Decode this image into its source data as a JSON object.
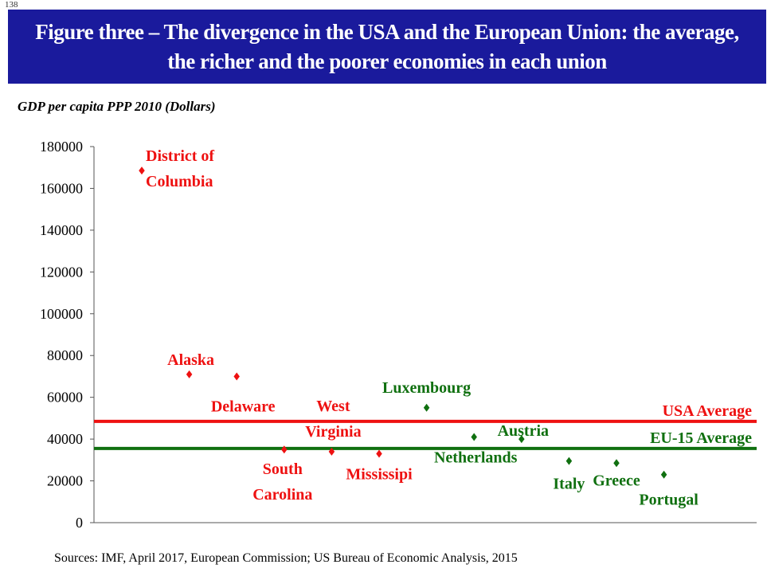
{
  "slide_number": "138",
  "title_line1": "Figure three – The divergence in the USA and the European Union: the average,",
  "title_line2": "the richer and the poorer economies in each union",
  "source": "Sources: IMF, April 2017, European Commission;  US Bureau of Economic Analysis, 2015",
  "colors": {
    "usa": "#ee1111",
    "eu": "#107010",
    "title_bg": "#1a1a9c"
  },
  "chart_data": {
    "type": "scatter",
    "ylabel": "GDP per capita PPP 2010 (Dollars)",
    "ylim": [
      0,
      180000
    ],
    "yticks": [
      "0",
      "20000",
      "40000",
      "60000",
      "80000",
      "100000",
      "120000",
      "140000",
      "160000",
      "180000"
    ],
    "grid": false,
    "series": [
      {
        "group": "usa",
        "points": [
          {
            "index": 1,
            "label": "District of Columbia",
            "value": 168500
          },
          {
            "index": 2,
            "label": "Alaska",
            "value": 71000
          },
          {
            "index": 3,
            "label": "Delaware",
            "value": 70000
          },
          {
            "index": 4,
            "label": "South Carolina",
            "value": 35000
          },
          {
            "index": 5,
            "label": "West Virginia",
            "value": 34000
          },
          {
            "index": 6,
            "label": "Mississipi",
            "value": 33000
          }
        ]
      },
      {
        "group": "eu",
        "points": [
          {
            "index": 7,
            "label": "Luxembourg",
            "value": 55000
          },
          {
            "index": 8,
            "label": "Netherlands",
            "value": 41000
          },
          {
            "index": 9,
            "label": "Austria",
            "value": 40000
          },
          {
            "index": 10,
            "label": "Italy",
            "value": 29500
          },
          {
            "index": 11,
            "label": "Greece",
            "value": 28500
          },
          {
            "index": 12,
            "label": "Portugal",
            "value": 23000
          }
        ]
      }
    ],
    "reference_lines": [
      {
        "label": "USA Average",
        "value": 48500,
        "group": "usa"
      },
      {
        "label": "EU-15 Average",
        "value": 35500,
        "group": "eu"
      }
    ]
  }
}
